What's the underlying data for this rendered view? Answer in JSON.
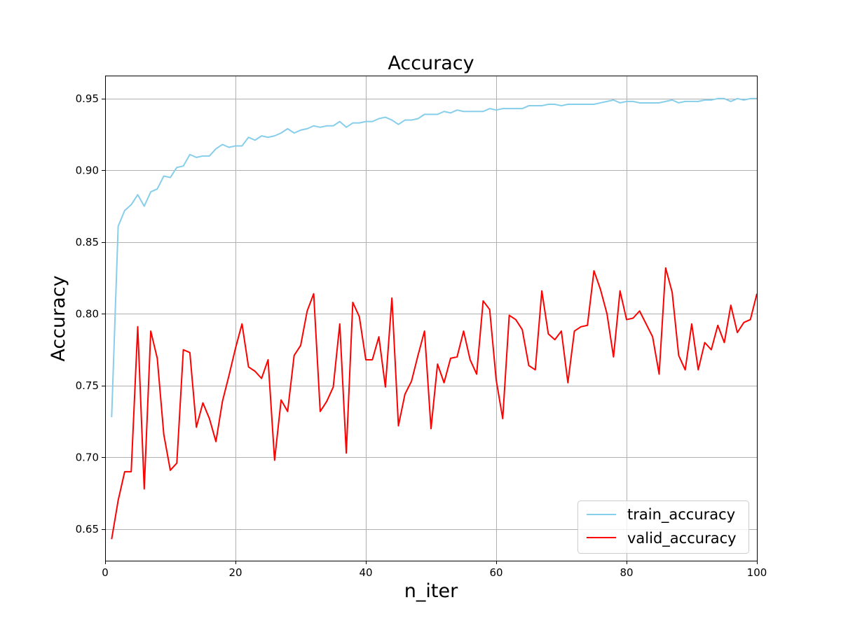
{
  "chart_data": {
    "type": "line",
    "title": "Accuracy",
    "xlabel": "n_iter",
    "ylabel": "Accuracy",
    "xlim": [
      0,
      100
    ],
    "ylim": [
      0.628,
      0.966
    ],
    "x_ticks": [
      0,
      20,
      40,
      60,
      80,
      100
    ],
    "y_ticks": [
      0.65,
      0.7,
      0.75,
      0.8,
      0.85,
      0.9,
      0.95
    ],
    "grid": true,
    "legend_position": "lower-right",
    "series": [
      {
        "name": "train_accuracy",
        "color": "#87ceeb",
        "x": [
          1,
          2,
          3,
          4,
          5,
          6,
          7,
          8,
          9,
          10,
          11,
          12,
          13,
          14,
          15,
          16,
          17,
          18,
          19,
          20,
          21,
          22,
          23,
          24,
          25,
          26,
          27,
          28,
          29,
          30,
          31,
          32,
          33,
          34,
          35,
          36,
          37,
          38,
          39,
          40,
          41,
          42,
          43,
          44,
          45,
          46,
          47,
          48,
          49,
          50,
          51,
          52,
          53,
          54,
          55,
          56,
          57,
          58,
          59,
          60,
          61,
          62,
          63,
          64,
          65,
          66,
          67,
          68,
          69,
          70,
          71,
          72,
          73,
          74,
          75,
          76,
          77,
          78,
          79,
          80,
          81,
          82,
          83,
          84,
          85,
          86,
          87,
          88,
          89,
          90,
          91,
          92,
          93,
          94,
          95,
          96,
          97,
          98,
          99,
          100
        ],
        "values": [
          0.728,
          0.861,
          0.872,
          0.876,
          0.883,
          0.875,
          0.885,
          0.887,
          0.896,
          0.895,
          0.902,
          0.903,
          0.911,
          0.909,
          0.91,
          0.91,
          0.915,
          0.918,
          0.916,
          0.917,
          0.917,
          0.923,
          0.921,
          0.924,
          0.923,
          0.924,
          0.926,
          0.929,
          0.926,
          0.928,
          0.929,
          0.931,
          0.93,
          0.931,
          0.931,
          0.934,
          0.93,
          0.933,
          0.933,
          0.934,
          0.934,
          0.936,
          0.937,
          0.935,
          0.932,
          0.935,
          0.935,
          0.936,
          0.939,
          0.939,
          0.939,
          0.941,
          0.94,
          0.942,
          0.941,
          0.941,
          0.941,
          0.941,
          0.943,
          0.942,
          0.943,
          0.943,
          0.943,
          0.943,
          0.945,
          0.945,
          0.945,
          0.946,
          0.946,
          0.945,
          0.946,
          0.946,
          0.946,
          0.946,
          0.946,
          0.947,
          0.948,
          0.949,
          0.947,
          0.948,
          0.948,
          0.947,
          0.947,
          0.947,
          0.947,
          0.948,
          0.949,
          0.947,
          0.948,
          0.948,
          0.948,
          0.949,
          0.949,
          0.95,
          0.95,
          0.948,
          0.95,
          0.949,
          0.95,
          0.95
        ]
      },
      {
        "name": "valid_accuracy",
        "color": "#ff0000",
        "x": [
          1,
          2,
          3,
          4,
          5,
          6,
          7,
          8,
          9,
          10,
          11,
          12,
          13,
          14,
          15,
          16,
          17,
          18,
          19,
          20,
          21,
          22,
          23,
          24,
          25,
          26,
          27,
          28,
          29,
          30,
          31,
          32,
          33,
          34,
          35,
          36,
          37,
          38,
          39,
          40,
          41,
          42,
          43,
          44,
          45,
          46,
          47,
          48,
          49,
          50,
          51,
          52,
          53,
          54,
          55,
          56,
          57,
          58,
          59,
          60,
          61,
          62,
          63,
          64,
          65,
          66,
          67,
          68,
          69,
          70,
          71,
          72,
          73,
          74,
          75,
          76,
          77,
          78,
          79,
          80,
          81,
          82,
          83,
          84,
          85,
          86,
          87,
          88,
          89,
          90,
          91,
          92,
          93,
          94,
          95,
          96,
          97,
          98,
          99,
          100
        ],
        "values": [
          0.643,
          0.67,
          0.69,
          0.69,
          0.791,
          0.678,
          0.788,
          0.769,
          0.716,
          0.691,
          0.696,
          0.775,
          0.773,
          0.721,
          0.738,
          0.727,
          0.711,
          0.739,
          0.757,
          0.776,
          0.793,
          0.763,
          0.76,
          0.755,
          0.768,
          0.698,
          0.74,
          0.732,
          0.771,
          0.778,
          0.802,
          0.814,
          0.732,
          0.739,
          0.749,
          0.793,
          0.703,
          0.808,
          0.798,
          0.768,
          0.768,
          0.784,
          0.749,
          0.811,
          0.722,
          0.744,
          0.753,
          0.771,
          0.788,
          0.72,
          0.765,
          0.752,
          0.769,
          0.77,
          0.788,
          0.768,
          0.758,
          0.809,
          0.803,
          0.754,
          0.727,
          0.799,
          0.796,
          0.789,
          0.764,
          0.761,
          0.816,
          0.786,
          0.782,
          0.788,
          0.752,
          0.788,
          0.791,
          0.792,
          0.83,
          0.817,
          0.8,
          0.77,
          0.816,
          0.796,
          0.797,
          0.802,
          0.793,
          0.784,
          0.758,
          0.832,
          0.815,
          0.771,
          0.761,
          0.793,
          0.761,
          0.78,
          0.775,
          0.792,
          0.78,
          0.806,
          0.787,
          0.794,
          0.796,
          0.814
        ]
      }
    ]
  }
}
